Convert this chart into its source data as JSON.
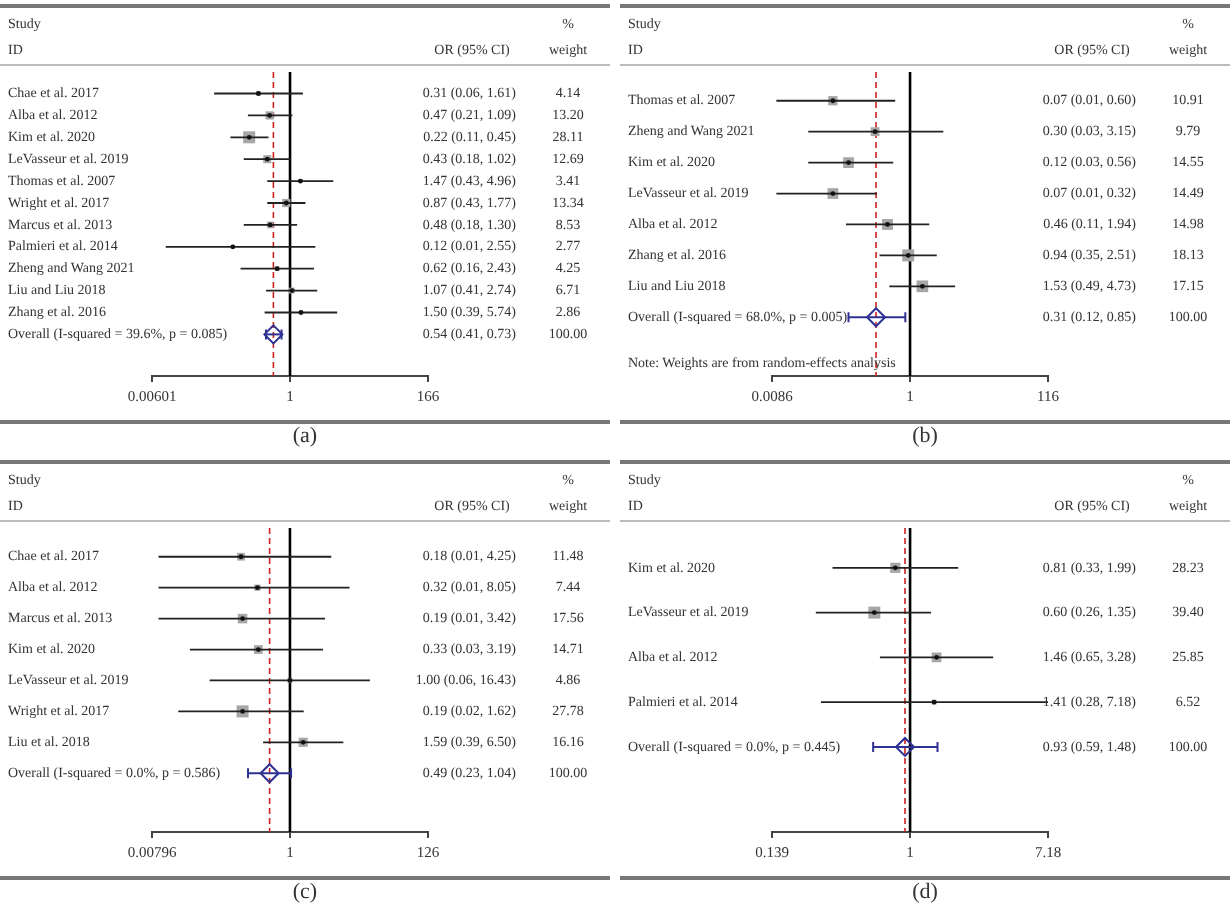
{
  "chart_data": [
    {
      "type": "bubble",
      "orientation": "horizontal",
      "log": "x",
      "legend": false,
      "grid": false,
      "categories": [
        "Chae et al. 2017",
        "Alba et al. 2012",
        "Kim et al. 2020",
        "LeVasseur et al. 2019",
        "Thomas et al. 2007",
        "Wright et al. 2017",
        "Marcus et al. 2013",
        "Palmieri et al. 2014",
        "Zheng and Wang 2021",
        "Liu and Liu 2018",
        "Zhang et al. 2016",
        "Overall (I-squared = 39.6%, p = 0.085)"
      ],
      "series": [
        {
          "marker": "square",
          "color": "#a6a6a6",
          "values": [
            0.31,
            0.47,
            0.22,
            0.43,
            1.47,
            0.87,
            0.48,
            0.12,
            0.62,
            1.07,
            1.5,
            null
          ],
          "errors": [
            [
              0.06,
              1.61
            ],
            [
              0.21,
              1.09
            ],
            [
              0.11,
              0.45
            ],
            [
              0.18,
              1.02
            ],
            [
              0.43,
              4.96
            ],
            [
              0.43,
              1.77
            ],
            [
              0.18,
              1.3
            ],
            [
              0.01,
              2.55
            ],
            [
              0.16,
              2.43
            ],
            [
              0.41,
              2.74
            ],
            [
              0.39,
              5.74
            ],
            null
          ],
          "sizes": [
            0.147,
            0.47,
            1,
            0.451,
            0.121,
            0.475,
            0.303,
            0.099,
            0.151,
            0.239,
            0.102,
            null
          ],
          "value_labels": [
            "0.31 (0.06, 1.61)",
            "0.47 (0.21, 1.09)",
            "0.22 (0.11, 0.45)",
            "0.43 (0.18, 1.02)",
            "1.47 (0.43, 4.96)",
            "0.87 (0.43, 1.77)",
            "0.48 (0.18, 1.30)",
            "0.12 (0.01, 2.55)",
            "0.62 (0.16, 2.43)",
            "1.07 (0.41, 2.74)",
            "1.50 (0.39, 5.74)",
            null
          ]
        },
        {
          "type": "scatter",
          "marker": "diamond",
          "color": "#2e3192",
          "values": [
            null,
            null,
            null,
            null,
            null,
            null,
            null,
            null,
            null,
            null,
            null,
            0.54
          ],
          "errors": [
            null,
            null,
            null,
            null,
            null,
            null,
            null,
            null,
            null,
            null,
            null,
            [
              0.41,
              0.73
            ]
          ]
        }
      ],
      "xlim": [
        0.00601,
        166
      ],
      "xticks": [
        0.00601,
        1,
        166
      ],
      "ref_lines": [
        {
          "axis": "x",
          "value": 1,
          "color": "#000000",
          "line_style": "solid"
        },
        {
          "axis": "x",
          "value": 0.54,
          "color": "#cc2222",
          "line_style": "dashed"
        }
      ],
      "annotations": [
        "Study",
        "ID",
        "OR (95% CI)",
        "%",
        "weight",
        "4.14",
        "13.20",
        "28.11",
        "12.69",
        "3.41",
        "13.34",
        "8.53",
        "2.77",
        "4.25",
        "6.71",
        "2.86",
        "100.00",
        "0.54 (0.41, 0.73)",
        "(a)"
      ]
    },
    {
      "type": "bubble",
      "orientation": "horizontal",
      "log": "x",
      "legend": false,
      "grid": false,
      "categories": [
        "Thomas et al. 2007",
        "Zheng and Wang 2021",
        "Kim et al. 2020",
        "LeVasseur et al. 2019",
        "Alba et al. 2012",
        "Zhang et al. 2016",
        "Liu and Liu 2018",
        "Overall (I-squared = 68.0%, p = 0.005)"
      ],
      "series": [
        {
          "marker": "square",
          "color": "#a6a6a6",
          "values": [
            0.07,
            0.3,
            0.12,
            0.07,
            0.46,
            0.94,
            1.53,
            null
          ],
          "errors": [
            [
              0.01,
              0.6
            ],
            [
              0.03,
              3.15
            ],
            [
              0.03,
              0.56
            ],
            [
              0.01,
              0.32
            ],
            [
              0.11,
              1.94
            ],
            [
              0.35,
              2.51
            ],
            [
              0.49,
              4.73
            ],
            null
          ],
          "sizes": [
            0.602,
            0.54,
            0.803,
            0.799,
            0.826,
            1,
            0.946,
            null
          ],
          "value_labels": [
            "0.07 (0.01, 0.60)",
            "0.30 (0.03, 3.15)",
            "0.12 (0.03, 0.56)",
            "0.07 (0.01, 0.32)",
            "0.46 (0.11, 1.94)",
            "0.94 (0.35, 2.51)",
            "1.53 (0.49, 4.73)",
            null
          ]
        },
        {
          "type": "scatter",
          "marker": "diamond",
          "color": "#2e3192",
          "values": [
            null,
            null,
            null,
            null,
            null,
            null,
            null,
            0.31
          ],
          "errors": [
            null,
            null,
            null,
            null,
            null,
            null,
            null,
            [
              0.12,
              0.85
            ]
          ]
        }
      ],
      "xlim": [
        0.0086,
        116
      ],
      "xticks": [
        0.0086,
        1,
        116
      ],
      "ref_lines": [
        {
          "axis": "x",
          "value": 1,
          "color": "#000000",
          "line_style": "solid"
        },
        {
          "axis": "x",
          "value": 0.31,
          "color": "#cc2222",
          "line_style": "dashed"
        }
      ],
      "annotations": [
        "Study",
        "ID",
        "OR (95% CI)",
        "%",
        "weight",
        "10.91",
        "9.79",
        "14.55",
        "14.49",
        "14.98",
        "18.13",
        "17.15",
        "100.00",
        "0.31 (0.12, 0.85)",
        "(b)",
        "Note: Weights are from random-effects analysis"
      ]
    },
    {
      "type": "bubble",
      "orientation": "horizontal",
      "log": "x",
      "legend": false,
      "grid": false,
      "categories": [
        "Chae et al. 2017",
        "Alba et al. 2012",
        "Marcus et al. 2013",
        "Kim et al. 2020",
        "LeVasseur et al. 2019",
        "Wright et al. 2017",
        "Liu et al. 2018",
        "Overall (I-squared = 0.0%, p = 0.586)"
      ],
      "series": [
        {
          "marker": "square",
          "color": "#a6a6a6",
          "values": [
            0.18,
            0.32,
            0.19,
            0.33,
            1.0,
            0.19,
            1.59,
            null
          ],
          "errors": [
            [
              0.01,
              4.25
            ],
            [
              0.01,
              8.05
            ],
            [
              0.01,
              3.42
            ],
            [
              0.03,
              3.19
            ],
            [
              0.06,
              16.43
            ],
            [
              0.02,
              1.62
            ],
            [
              0.39,
              6.5
            ],
            null
          ],
          "sizes": [
            0.413,
            0.268,
            0.632,
            0.53,
            0.175,
            1,
            0.582,
            null
          ],
          "value_labels": [
            "0.18 (0.01, 4.25)",
            "0.32 (0.01, 8.05)",
            "0.19 (0.01, 3.42)",
            "0.33 (0.03, 3.19)",
            "1.00 (0.06, 16.43)",
            "0.19 (0.02, 1.62)",
            "1.59 (0.39, 6.50)",
            null
          ]
        },
        {
          "type": "scatter",
          "marker": "diamond",
          "color": "#2e3192",
          "values": [
            null,
            null,
            null,
            null,
            null,
            null,
            null,
            0.49
          ],
          "errors": [
            null,
            null,
            null,
            null,
            null,
            null,
            null,
            [
              0.23,
              1.04
            ]
          ]
        }
      ],
      "xlim": [
        0.00796,
        126
      ],
      "xticks": [
        0.00796,
        1,
        126
      ],
      "ref_lines": [
        {
          "axis": "x",
          "value": 1,
          "color": "#000000",
          "line_style": "solid"
        },
        {
          "axis": "x",
          "value": 0.49,
          "color": "#cc2222",
          "line_style": "dashed"
        }
      ],
      "annotations": [
        "Study",
        "ID",
        "OR (95% CI)",
        "%",
        "weight",
        "11.48",
        "7.44",
        "17.56",
        "14.71",
        "4.86",
        "27.78",
        "16.16",
        "100.00",
        "0.49 (0.23, 1.04)",
        "(c)"
      ]
    },
    {
      "type": "bubble",
      "orientation": "horizontal",
      "log": "x",
      "legend": false,
      "grid": false,
      "categories": [
        "Kim et al. 2020",
        "LeVasseur et al. 2019",
        "Alba et al. 2012",
        "Palmieri et al. 2014",
        "Overall (I-squared = 0.0%, p = 0.445)"
      ],
      "series": [
        {
          "marker": "square",
          "color": "#a6a6a6",
          "values": [
            0.81,
            0.6,
            1.46,
            1.41,
            null
          ],
          "errors": [
            [
              0.33,
              1.99
            ],
            [
              0.26,
              1.35
            ],
            [
              0.65,
              3.28
            ],
            [
              0.28,
              7.18
            ],
            null
          ],
          "sizes": [
            0.717,
            1,
            0.656,
            0.165,
            null
          ],
          "value_labels": [
            "0.81 (0.33, 1.99)",
            "0.60 (0.26, 1.35)",
            "1.46 (0.65, 3.28)",
            "1.41 (0.28, 7.18)",
            null
          ]
        },
        {
          "type": "scatter",
          "marker": "diamond",
          "color": "#2e3192",
          "values": [
            null,
            null,
            null,
            null,
            0.93
          ],
          "errors": [
            null,
            null,
            null,
            null,
            [
              0.59,
              1.48
            ]
          ]
        }
      ],
      "xlim": [
        0.139,
        7.18
      ],
      "xticks": [
        0.139,
        1,
        7.18
      ],
      "ref_lines": [
        {
          "axis": "x",
          "value": 1,
          "color": "#000000",
          "line_style": "solid"
        },
        {
          "axis": "x",
          "value": 0.93,
          "color": "#cc2222",
          "line_style": "dashed"
        }
      ],
      "annotations": [
        "Study",
        "ID",
        "OR (95% CI)",
        "%",
        "weight",
        "28.23",
        "39.40",
        "25.85",
        "6.52",
        "100.00",
        "0.93 (0.59, 1.48)",
        "(d)"
      ]
    }
  ]
}
